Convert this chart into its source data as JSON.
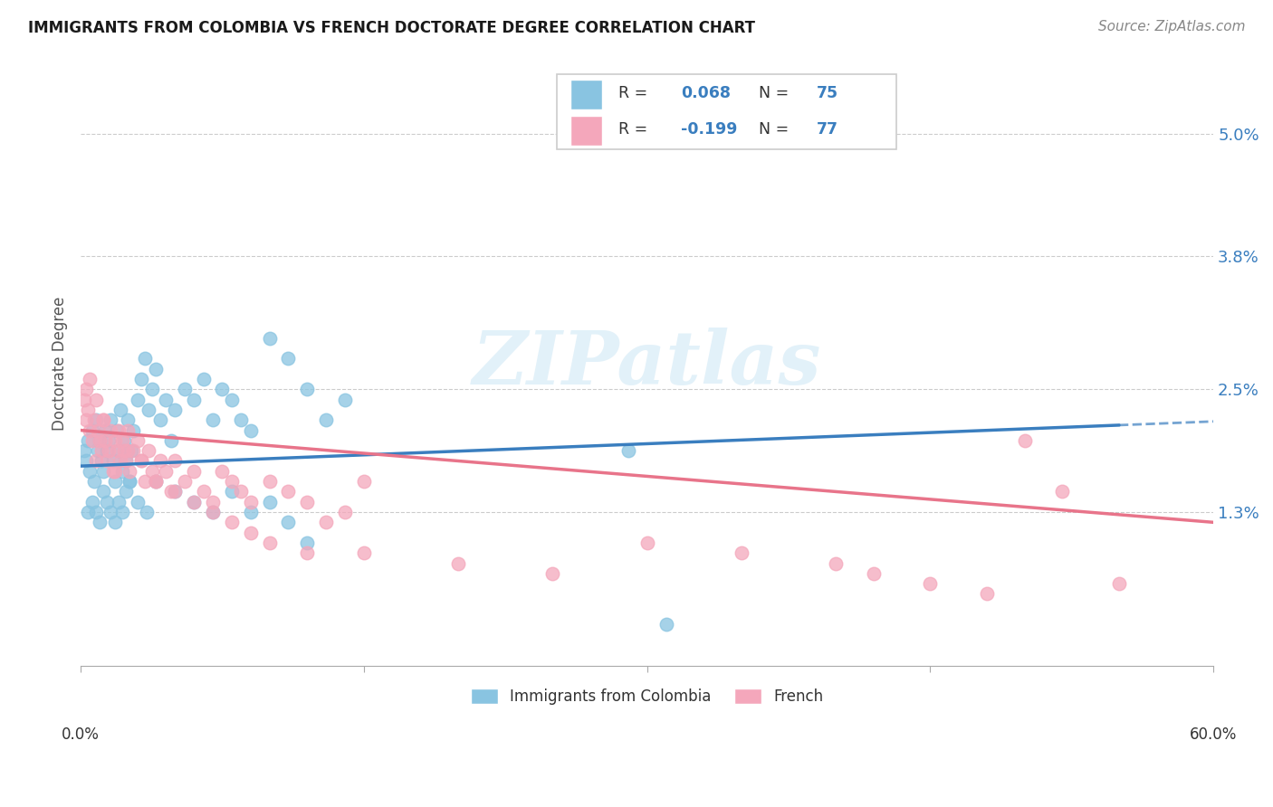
{
  "title": "IMMIGRANTS FROM COLOMBIA VS FRENCH DOCTORATE DEGREE CORRELATION CHART",
  "source": "Source: ZipAtlas.com",
  "ylabel": "Doctorate Degree",
  "yticks": [
    "1.3%",
    "2.5%",
    "3.8%",
    "5.0%"
  ],
  "ytick_vals": [
    0.013,
    0.025,
    0.038,
    0.05
  ],
  "xlim": [
    0.0,
    0.6
  ],
  "ylim": [
    -0.002,
    0.057
  ],
  "color_blue": "#89c4e1",
  "color_pink": "#f4a7bb",
  "trendline1_color": "#3a7ebf",
  "trendline2_color": "#e8748a",
  "watermark": "ZIPatlas",
  "legend1_color": "#89c4e1",
  "legend2_color": "#f4a7bb",
  "blue_r": "0.068",
  "blue_n": "75",
  "pink_r": "-0.199",
  "pink_n": "77",
  "blue_scatter_x": [
    0.002,
    0.003,
    0.004,
    0.005,
    0.006,
    0.007,
    0.008,
    0.009,
    0.01,
    0.011,
    0.012,
    0.013,
    0.014,
    0.015,
    0.016,
    0.017,
    0.018,
    0.019,
    0.02,
    0.021,
    0.022,
    0.023,
    0.024,
    0.025,
    0.026,
    0.027,
    0.028,
    0.03,
    0.032,
    0.034,
    0.036,
    0.038,
    0.04,
    0.042,
    0.045,
    0.048,
    0.05,
    0.055,
    0.06,
    0.065,
    0.07,
    0.075,
    0.08,
    0.085,
    0.09,
    0.1,
    0.11,
    0.12,
    0.13,
    0.14,
    0.004,
    0.006,
    0.008,
    0.01,
    0.012,
    0.014,
    0.016,
    0.018,
    0.02,
    0.022,
    0.024,
    0.026,
    0.03,
    0.035,
    0.04,
    0.05,
    0.06,
    0.07,
    0.08,
    0.09,
    0.1,
    0.11,
    0.12,
    0.29,
    0.31
  ],
  "blue_scatter_y": [
    0.019,
    0.018,
    0.02,
    0.017,
    0.021,
    0.016,
    0.022,
    0.019,
    0.02,
    0.018,
    0.017,
    0.021,
    0.019,
    0.02,
    0.022,
    0.018,
    0.016,
    0.021,
    0.019,
    0.023,
    0.017,
    0.02,
    0.018,
    0.022,
    0.016,
    0.019,
    0.021,
    0.024,
    0.026,
    0.028,
    0.023,
    0.025,
    0.027,
    0.022,
    0.024,
    0.02,
    0.023,
    0.025,
    0.024,
    0.026,
    0.022,
    0.025,
    0.024,
    0.022,
    0.021,
    0.03,
    0.028,
    0.025,
    0.022,
    0.024,
    0.013,
    0.014,
    0.013,
    0.012,
    0.015,
    0.014,
    0.013,
    0.012,
    0.014,
    0.013,
    0.015,
    0.016,
    0.014,
    0.013,
    0.016,
    0.015,
    0.014,
    0.013,
    0.015,
    0.013,
    0.014,
    0.012,
    0.01,
    0.019,
    0.002
  ],
  "pink_scatter_x": [
    0.002,
    0.003,
    0.004,
    0.005,
    0.006,
    0.007,
    0.008,
    0.009,
    0.01,
    0.011,
    0.012,
    0.013,
    0.014,
    0.015,
    0.016,
    0.017,
    0.018,
    0.019,
    0.02,
    0.021,
    0.022,
    0.023,
    0.024,
    0.025,
    0.026,
    0.028,
    0.03,
    0.032,
    0.034,
    0.036,
    0.038,
    0.04,
    0.042,
    0.045,
    0.048,
    0.05,
    0.055,
    0.06,
    0.065,
    0.07,
    0.075,
    0.08,
    0.085,
    0.09,
    0.1,
    0.11,
    0.12,
    0.13,
    0.14,
    0.15,
    0.003,
    0.005,
    0.008,
    0.012,
    0.018,
    0.025,
    0.032,
    0.04,
    0.05,
    0.06,
    0.07,
    0.08,
    0.09,
    0.1,
    0.12,
    0.15,
    0.2,
    0.25,
    0.3,
    0.35,
    0.4,
    0.42,
    0.45,
    0.48,
    0.5,
    0.52,
    0.55
  ],
  "pink_scatter_y": [
    0.024,
    0.022,
    0.023,
    0.021,
    0.02,
    0.022,
    0.018,
    0.021,
    0.02,
    0.019,
    0.022,
    0.02,
    0.018,
    0.019,
    0.021,
    0.017,
    0.02,
    0.019,
    0.021,
    0.018,
    0.02,
    0.019,
    0.018,
    0.021,
    0.017,
    0.019,
    0.02,
    0.018,
    0.016,
    0.019,
    0.017,
    0.016,
    0.018,
    0.017,
    0.015,
    0.018,
    0.016,
    0.017,
    0.015,
    0.014,
    0.017,
    0.016,
    0.015,
    0.014,
    0.016,
    0.015,
    0.014,
    0.012,
    0.013,
    0.016,
    0.025,
    0.026,
    0.024,
    0.022,
    0.017,
    0.019,
    0.018,
    0.016,
    0.015,
    0.014,
    0.013,
    0.012,
    0.011,
    0.01,
    0.009,
    0.009,
    0.008,
    0.007,
    0.01,
    0.009,
    0.008,
    0.007,
    0.006,
    0.005,
    0.02,
    0.015,
    0.006
  ],
  "trendline1_x0": 0.0,
  "trendline1_x1": 0.55,
  "trendline1_y0": 0.0175,
  "trendline1_y1": 0.0215,
  "trendline2_x0": 0.0,
  "trendline2_x1": 0.6,
  "trendline2_y0": 0.021,
  "trendline2_y1": 0.012
}
